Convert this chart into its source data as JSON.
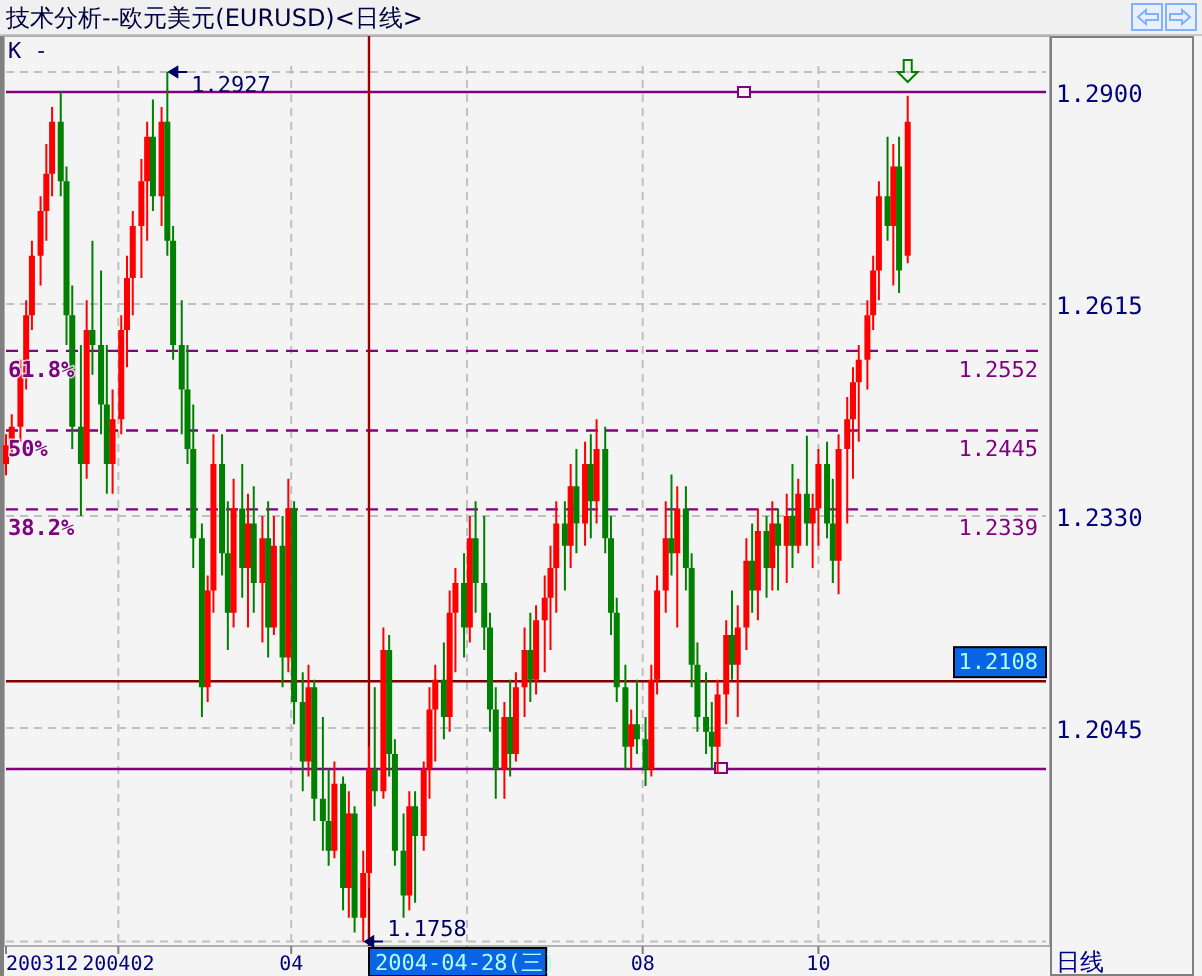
{
  "chart_data": {
    "type": "candlestick",
    "title": "技术分析--欧元美元(EURUSD)<日线>",
    "x": [
      "2003-12-24",
      "2003-12-26",
      "2003-12-29",
      "2003-12-31",
      "2004-01-02",
      "2004-01-05",
      "2004-01-07",
      "2004-01-09",
      "2004-01-12",
      "2004-01-14",
      "2004-01-16",
      "2004-01-19",
      "2004-01-21",
      "2004-01-23",
      "2004-01-26",
      "2004-01-28",
      "2004-01-30",
      "2004-02-02",
      "2004-02-04",
      "2004-02-06",
      "2004-02-09",
      "2004-02-11",
      "2004-02-13",
      "2004-02-16",
      "2004-02-18",
      "2004-02-20",
      "2004-02-23",
      "2004-02-25",
      "2004-02-27",
      "2004-03-01",
      "2004-03-03",
      "2004-03-05",
      "2004-03-08",
      "2004-03-10",
      "2004-03-12",
      "2004-03-15",
      "2004-03-17",
      "2004-03-19",
      "2004-03-22",
      "2004-03-24",
      "2004-03-26",
      "2004-03-29",
      "2004-03-31",
      "2004-04-02",
      "2004-04-05",
      "2004-04-07",
      "2004-04-09",
      "2004-04-12",
      "2004-04-14",
      "2004-04-16",
      "2004-04-19",
      "2004-04-21",
      "2004-04-23",
      "2004-04-26",
      "2004-04-28",
      "2004-04-30",
      "2004-05-03",
      "2004-05-05",
      "2004-05-07",
      "2004-05-10",
      "2004-05-12",
      "2004-05-14",
      "2004-05-17",
      "2004-05-19",
      "2004-05-21",
      "2004-05-24",
      "2004-05-26",
      "2004-05-28",
      "2004-05-31",
      "2004-06-02",
      "2004-06-04",
      "2004-06-07",
      "2004-06-09",
      "2004-06-11",
      "2004-06-14",
      "2004-06-16",
      "2004-06-18",
      "2004-06-21",
      "2004-06-23",
      "2004-06-25",
      "2004-06-28",
      "2004-06-30",
      "2004-07-02",
      "2004-07-05",
      "2004-07-07",
      "2004-07-09",
      "2004-07-12",
      "2004-07-14",
      "2004-07-16",
      "2004-07-19",
      "2004-07-21",
      "2004-07-23",
      "2004-07-26",
      "2004-07-28",
      "2004-07-30",
      "2004-08-02",
      "2004-08-04",
      "2004-08-06",
      "2004-08-09",
      "2004-08-11",
      "2004-08-13",
      "2004-08-16",
      "2004-08-18",
      "2004-08-20",
      "2004-08-23",
      "2004-08-25",
      "2004-08-27",
      "2004-08-30",
      "2004-09-01",
      "2004-09-03",
      "2004-09-06",
      "2004-09-08",
      "2004-09-10",
      "2004-09-13",
      "2004-09-15",
      "2004-09-17",
      "2004-09-20",
      "2004-09-22",
      "2004-09-24",
      "2004-09-27",
      "2004-09-29",
      "2004-10-01",
      "2004-10-04",
      "2004-10-06",
      "2004-10-08",
      "2004-10-11",
      "2004-10-13",
      "2004-10-15",
      "2004-10-18",
      "2004-10-20",
      "2004-10-22",
      "2004-10-25",
      "2004-10-27",
      "2004-10-29",
      "2004-11-01"
    ],
    "ohlc": [
      [
        1.24,
        1.244,
        1.2385,
        1.2425
      ],
      [
        1.2425,
        1.2467,
        1.241,
        1.245
      ],
      [
        1.245,
        1.254,
        1.243,
        1.252
      ],
      [
        1.252,
        1.262,
        1.25,
        1.26
      ],
      [
        1.26,
        1.27,
        1.258,
        1.268
      ],
      [
        1.268,
        1.276,
        1.264,
        1.274
      ],
      [
        1.274,
        1.283,
        1.27,
        1.279
      ],
      [
        1.279,
        1.288,
        1.276,
        1.286
      ],
      [
        1.286,
        1.29,
        1.276,
        1.278
      ],
      [
        1.278,
        1.28,
        1.256,
        1.26
      ],
      [
        1.26,
        1.264,
        1.242,
        1.245
      ],
      [
        1.245,
        1.256,
        1.233,
        1.24
      ],
      [
        1.24,
        1.262,
        1.238,
        1.258
      ],
      [
        1.258,
        1.27,
        1.252,
        1.256
      ],
      [
        1.256,
        1.266,
        1.244,
        1.248
      ],
      [
        1.248,
        1.256,
        1.236,
        1.24
      ],
      [
        1.24,
        1.25,
        1.236,
        1.246
      ],
      [
        1.246,
        1.26,
        1.244,
        1.258
      ],
      [
        1.258,
        1.268,
        1.253,
        1.265
      ],
      [
        1.265,
        1.274,
        1.26,
        1.272
      ],
      [
        1.272,
        1.281,
        1.265,
        1.278
      ],
      [
        1.278,
        1.286,
        1.27,
        1.284
      ],
      [
        1.284,
        1.289,
        1.274,
        1.276
      ],
      [
        1.276,
        1.288,
        1.272,
        1.286
      ],
      [
        1.286,
        1.2927,
        1.268,
        1.27
      ],
      [
        1.27,
        1.272,
        1.254,
        1.256
      ],
      [
        1.256,
        1.262,
        1.244,
        1.25
      ],
      [
        1.25,
        1.256,
        1.24,
        1.242
      ],
      [
        1.242,
        1.248,
        1.226,
        1.23
      ],
      [
        1.23,
        1.232,
        1.206,
        1.21
      ],
      [
        1.21,
        1.225,
        1.208,
        1.223
      ],
      [
        1.223,
        1.244,
        1.22,
        1.24
      ],
      [
        1.24,
        1.244,
        1.225,
        1.228
      ],
      [
        1.228,
        1.235,
        1.215,
        1.22
      ],
      [
        1.22,
        1.238,
        1.218,
        1.234
      ],
      [
        1.234,
        1.24,
        1.222,
        1.226
      ],
      [
        1.226,
        1.236,
        1.218,
        1.232
      ],
      [
        1.232,
        1.237,
        1.22,
        1.224
      ],
      [
        1.224,
        1.233,
        1.216,
        1.23
      ],
      [
        1.23,
        1.235,
        1.214,
        1.218
      ],
      [
        1.218,
        1.233,
        1.217,
        1.229
      ],
      [
        1.229,
        1.233,
        1.21,
        1.214
      ],
      [
        1.214,
        1.238,
        1.212,
        1.234
      ],
      [
        1.234,
        1.235,
        1.205,
        1.208
      ],
      [
        1.208,
        1.212,
        1.196,
        1.2
      ],
      [
        1.2,
        1.213,
        1.198,
        1.21
      ],
      [
        1.21,
        1.211,
        1.192,
        1.195
      ],
      [
        1.195,
        1.206,
        1.188,
        1.192
      ],
      [
        1.192,
        1.199,
        1.186,
        1.188
      ],
      [
        1.188,
        1.2,
        1.187,
        1.197
      ],
      [
        1.197,
        1.198,
        1.18,
        1.183
      ],
      [
        1.183,
        1.196,
        1.179,
        1.193
      ],
      [
        1.193,
        1.194,
        1.177,
        1.179
      ],
      [
        1.179,
        1.188,
        1.1758,
        1.185
      ],
      [
        1.185,
        1.202,
        1.183,
        1.199
      ],
      [
        1.199,
        1.21,
        1.194,
        1.196
      ],
      [
        1.196,
        1.218,
        1.195,
        1.215
      ],
      [
        1.215,
        1.217,
        1.198,
        1.201
      ],
      [
        1.201,
        1.203,
        1.186,
        1.188
      ],
      [
        1.188,
        1.193,
        1.179,
        1.182
      ],
      [
        1.182,
        1.196,
        1.18,
        1.194
      ],
      [
        1.194,
        1.196,
        1.181,
        1.19
      ],
      [
        1.19,
        1.2,
        1.188,
        1.199
      ],
      [
        1.199,
        1.21,
        1.195,
        1.207
      ],
      [
        1.207,
        1.213,
        1.2,
        1.211
      ],
      [
        1.211,
        1.216,
        1.203,
        1.206
      ],
      [
        1.206,
        1.223,
        1.204,
        1.22
      ],
      [
        1.22,
        1.226,
        1.212,
        1.224
      ],
      [
        1.224,
        1.228,
        1.214,
        1.218
      ],
      [
        1.218,
        1.233,
        1.216,
        1.23
      ],
      [
        1.23,
        1.235,
        1.22,
        1.224
      ],
      [
        1.224,
        1.233,
        1.215,
        1.218
      ],
      [
        1.218,
        1.22,
        1.204,
        1.207
      ],
      [
        1.207,
        1.21,
        1.195,
        1.199
      ],
      [
        1.199,
        1.208,
        1.195,
        1.206
      ],
      [
        1.206,
        1.211,
        1.198,
        1.201
      ],
      [
        1.201,
        1.212,
        1.2,
        1.21
      ],
      [
        1.21,
        1.218,
        1.206,
        1.215
      ],
      [
        1.215,
        1.22,
        1.208,
        1.211
      ],
      [
        1.211,
        1.221,
        1.209,
        1.219
      ],
      [
        1.219,
        1.225,
        1.212,
        1.222
      ],
      [
        1.222,
        1.229,
        1.215,
        1.226
      ],
      [
        1.226,
        1.235,
        1.22,
        1.232
      ],
      [
        1.232,
        1.235,
        1.223,
        1.229
      ],
      [
        1.229,
        1.24,
        1.226,
        1.237
      ],
      [
        1.237,
        1.242,
        1.228,
        1.232
      ],
      [
        1.232,
        1.243,
        1.229,
        1.24
      ],
      [
        1.24,
        1.244,
        1.23,
        1.235
      ],
      [
        1.235,
        1.246,
        1.232,
        1.242
      ],
      [
        1.242,
        1.245,
        1.228,
        1.23
      ],
      [
        1.23,
        1.233,
        1.217,
        1.22
      ],
      [
        1.22,
        1.222,
        1.208,
        1.21
      ],
      [
        1.21,
        1.213,
        1.199,
        1.202
      ],
      [
        1.202,
        1.207,
        1.199,
        1.205
      ],
      [
        1.205,
        1.211,
        1.201,
        1.203
      ],
      [
        1.203,
        1.206,
        1.1967,
        1.199
      ],
      [
        1.199,
        1.213,
        1.198,
        1.211
      ],
      [
        1.211,
        1.225,
        1.209,
        1.223
      ],
      [
        1.223,
        1.235,
        1.22,
        1.23
      ],
      [
        1.23,
        1.2386,
        1.225,
        1.228
      ],
      [
        1.228,
        1.237,
        1.218,
        1.234
      ],
      [
        1.234,
        1.237,
        1.223,
        1.226
      ],
      [
        1.226,
        1.228,
        1.21,
        1.213
      ],
      [
        1.213,
        1.216,
        1.204,
        1.206
      ],
      [
        1.206,
        1.212,
        1.201,
        1.204
      ],
      [
        1.204,
        1.208,
        1.199,
        1.202
      ],
      [
        1.202,
        1.211,
        1.1984,
        1.209
      ],
      [
        1.209,
        1.219,
        1.205,
        1.217
      ],
      [
        1.217,
        1.223,
        1.211,
        1.213
      ],
      [
        1.213,
        1.221,
        1.206,
        1.218
      ],
      [
        1.218,
        1.23,
        1.215,
        1.227
      ],
      [
        1.227,
        1.232,
        1.22,
        1.223
      ],
      [
        1.223,
        1.234,
        1.219,
        1.231
      ],
      [
        1.231,
        1.233,
        1.222,
        1.226
      ],
      [
        1.226,
        1.235,
        1.223,
        1.232
      ],
      [
        1.232,
        1.234,
        1.223,
        1.229
      ],
      [
        1.229,
        1.236,
        1.224,
        1.233
      ],
      [
        1.233,
        1.24,
        1.226,
        1.229
      ],
      [
        1.229,
        1.238,
        1.228,
        1.236
      ],
      [
        1.236,
        1.2438,
        1.229,
        1.232
      ],
      [
        1.232,
        1.236,
        1.226,
        1.234
      ],
      [
        1.234,
        1.242,
        1.229,
        1.24
      ],
      [
        1.24,
        1.243,
        1.23,
        1.232
      ],
      [
        1.232,
        1.238,
        1.224,
        1.227
      ],
      [
        1.227,
        1.244,
        1.2225,
        1.242
      ],
      [
        1.242,
        1.249,
        1.232,
        1.246
      ],
      [
        1.246,
        1.253,
        1.238,
        1.251
      ],
      [
        1.251,
        1.256,
        1.243,
        1.254
      ],
      [
        1.254,
        1.262,
        1.25,
        1.26
      ],
      [
        1.26,
        1.268,
        1.258,
        1.266
      ],
      [
        1.266,
        1.278,
        1.262,
        1.276
      ],
      [
        1.276,
        1.284,
        1.27,
        1.272
      ],
      [
        1.272,
        1.283,
        1.264,
        1.28
      ],
      [
        1.28,
        1.284,
        1.263,
        1.266
      ],
      [
        1.268,
        1.2895,
        1.267,
        1.286
      ]
    ],
    "colors": [
      "#ff0000",
      "#ff0000",
      "#ff0000",
      "#ff0000",
      "#ff0000",
      "#ff0000",
      "#ff0000",
      "#ff0000",
      "#008000",
      "#008000",
      "#008000",
      "#008000",
      "#ff0000",
      "#008000",
      "#008000",
      "#008000",
      "#ff0000",
      "#ff0000",
      "#ff0000",
      "#ff0000",
      "#ff0000",
      "#ff0000",
      "#008000",
      "#ff0000",
      "#008000",
      "#008000",
      "#008000",
      "#008000",
      "#008000",
      "#008000",
      "#ff0000",
      "#ff0000",
      "#008000",
      "#008000",
      "#ff0000",
      "#008000",
      "#ff0000",
      "#008000",
      "#ff0000",
      "#008000",
      "#ff0000",
      "#008000",
      "#ff0000",
      "#008000",
      "#008000",
      "#ff0000",
      "#008000",
      "#008000",
      "#008000",
      "#ff0000",
      "#008000",
      "#ff0000",
      "#008000",
      "#ff0000",
      "#ff0000",
      "#008000",
      "#ff0000",
      "#008000",
      "#008000",
      "#008000",
      "#ff0000",
      "#008000",
      "#ff0000",
      "#ff0000",
      "#ff0000",
      "#008000",
      "#ff0000",
      "#ff0000",
      "#008000",
      "#ff0000",
      "#008000",
      "#008000",
      "#008000",
      "#008000",
      "#ff0000",
      "#008000",
      "#ff0000",
      "#ff0000",
      "#008000",
      "#ff0000",
      "#ff0000",
      "#ff0000",
      "#ff0000",
      "#008000",
      "#ff0000",
      "#008000",
      "#ff0000",
      "#008000",
      "#ff0000",
      "#008000",
      "#008000",
      "#008000",
      "#008000",
      "#ff0000",
      "#008000",
      "#008000",
      "#ff0000",
      "#ff0000",
      "#ff0000",
      "#008000",
      "#ff0000",
      "#008000",
      "#008000",
      "#008000",
      "#008000",
      "#008000",
      "#ff0000",
      "#ff0000",
      "#008000",
      "#ff0000",
      "#ff0000",
      "#008000",
      "#ff0000",
      "#008000",
      "#ff0000",
      "#008000",
      "#ff0000",
      "#008000",
      "#ff0000",
      "#008000",
      "#ff0000",
      "#ff0000",
      "#008000",
      "#008000",
      "#ff0000",
      "#ff0000",
      "#ff0000",
      "#ff0000",
      "#ff0000",
      "#ff0000",
      "#ff0000",
      "#008000",
      "#ff0000",
      "#008000",
      "#ff0000"
    ],
    "xlim": [
      "2003-12-24",
      "2004-12-19"
    ],
    "xticks": [
      {
        "value": "2003-12-24",
        "label": "200312"
      },
      {
        "value": "2004-02-01",
        "label": "200402"
      },
      {
        "value": "2004-04-01",
        "label": "04"
      },
      {
        "value": "2004-06-01",
        "label": null
      },
      {
        "value": "2004-08-01",
        "label": "08"
      },
      {
        "value": "2004-10-01",
        "label": "10"
      }
    ],
    "ylim": [
      1.1752,
      1.2935
    ],
    "yticks": [
      {
        "value": 1.1758,
        "label": null
      },
      {
        "value": 1.2045,
        "label": "1.2045"
      },
      {
        "value": 1.233,
        "label": "1.2330"
      },
      {
        "value": 1.2615,
        "label": "1.2615"
      },
      {
        "value": 1.29,
        "label": "1.2900"
      },
      {
        "value": 1.2927,
        "label": null
      }
    ],
    "grid": true,
    "ref_lines": [
      {
        "axis": "y",
        "value": 1.29,
        "label": null,
        "color": "#800080",
        "line_style": "solid"
      },
      {
        "axis": "y",
        "value": 1.2552,
        "label": "1.2552",
        "color": "#800080",
        "line_style": "dashed"
      },
      {
        "axis": "y",
        "value": 1.2445,
        "label": "1.2445",
        "color": "#800080",
        "line_style": "dashed"
      },
      {
        "axis": "y",
        "value": 1.2339,
        "label": "1.2339",
        "color": "#800080",
        "line_style": "dashed"
      },
      {
        "axis": "y",
        "value": 1.199,
        "label": null,
        "color": "#800080",
        "line_style": "solid"
      },
      {
        "axis": "y",
        "value": 1.2108,
        "label": "1.2108",
        "color": "#800000",
        "line_style": "solid"
      },
      {
        "axis": "x",
        "value": "2004-04-28",
        "label": "2004-04-28(三)",
        "color": "#a00000",
        "line_style": "solid"
      }
    ],
    "annotations": [
      "K -",
      "日线",
      "1.2927",
      "1.1758",
      {
        "text": "61.8%",
        "y": 1.2552
      },
      {
        "text": "50%",
        "y": 1.2445
      },
      {
        "text": "38.2%",
        "y": 1.2339
      }
    ]
  }
}
